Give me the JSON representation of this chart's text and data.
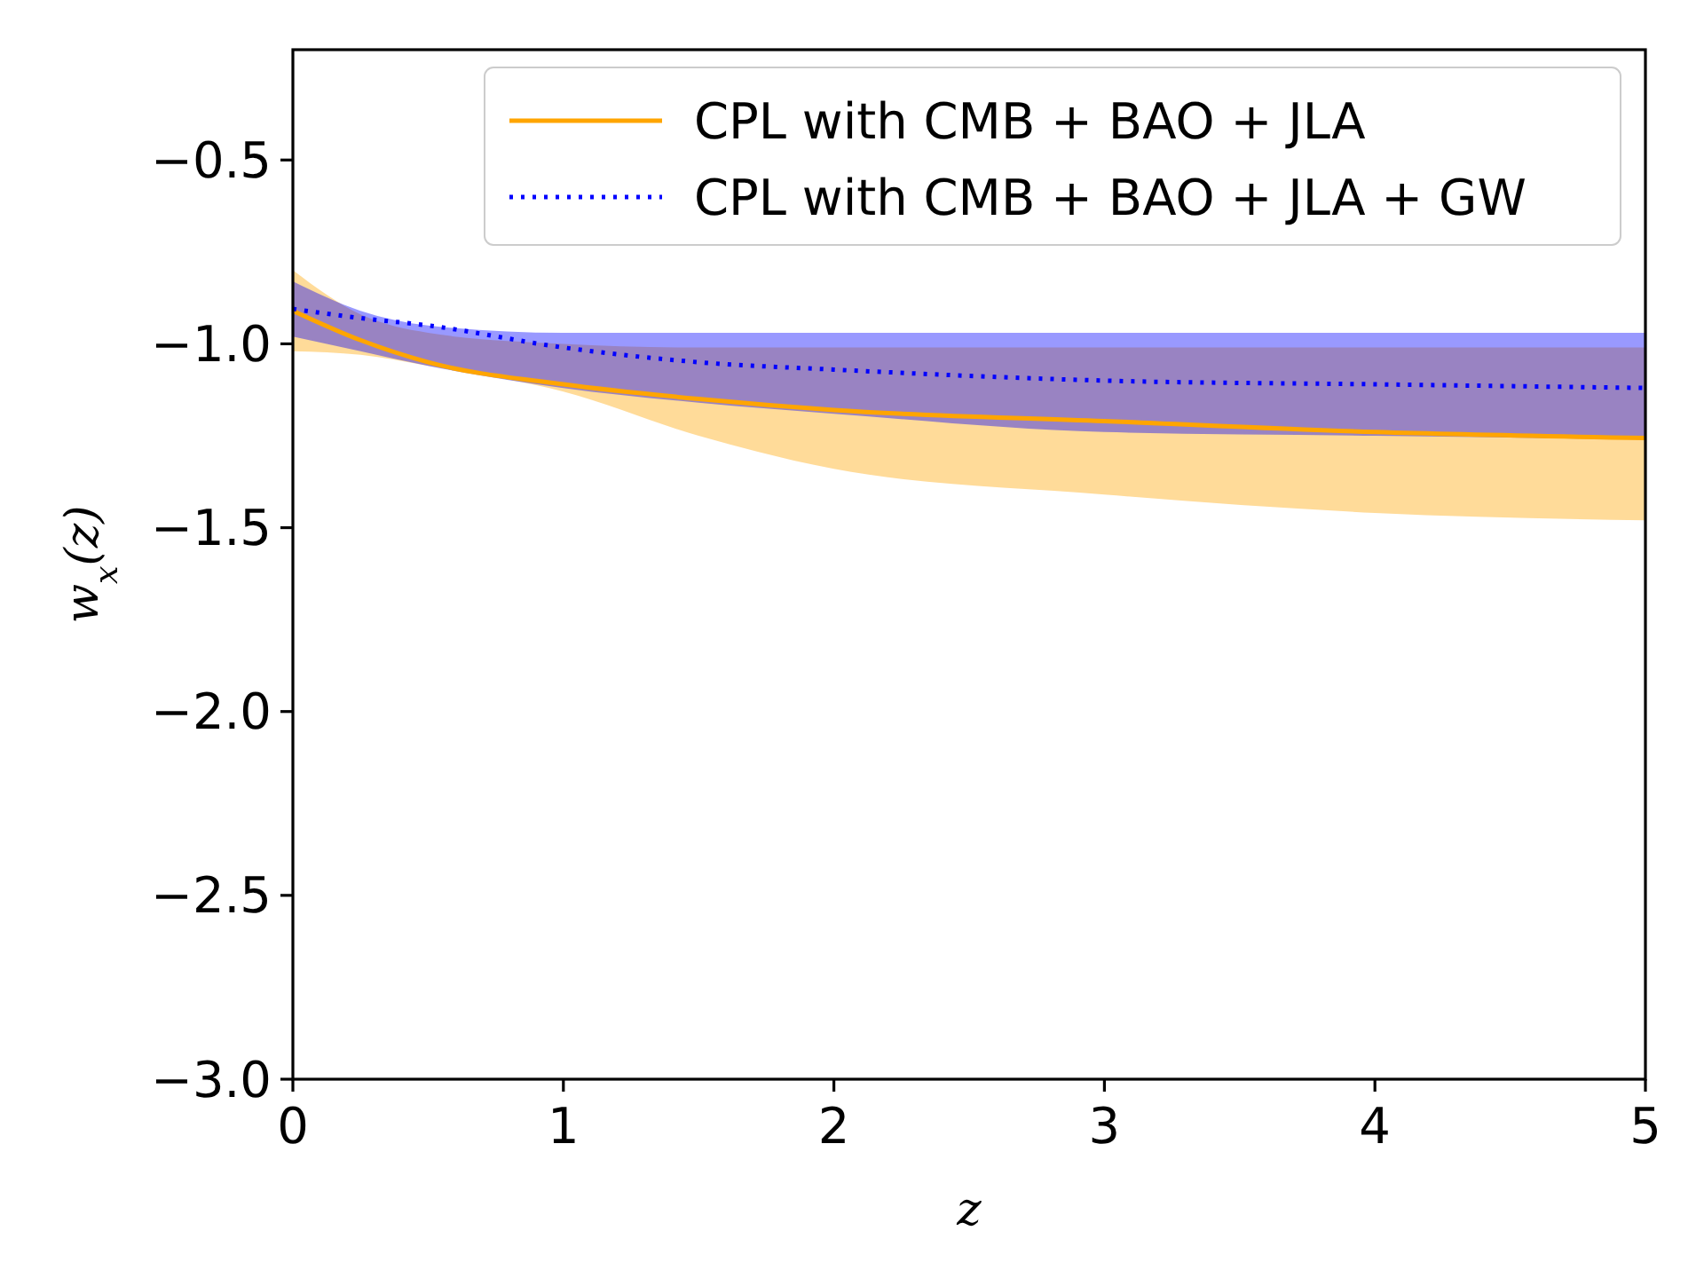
{
  "chart_data": {
    "type": "line",
    "xlabel": "z",
    "ylabel": "w$_{x}$(z)",
    "xlim": [
      0,
      5
    ],
    "ylim": [
      -3,
      -0.2
    ],
    "xticks": [
      0,
      1,
      2,
      3,
      4,
      5
    ],
    "yticks": [
      {
        "value": -3,
        "label": "−3.0"
      },
      {
        "value": -2.5,
        "label": "−2.5"
      },
      {
        "value": -2,
        "label": "−2.0"
      },
      {
        "value": -1.5,
        "label": "−1.5"
      },
      {
        "value": -1,
        "label": "−1.0"
      },
      {
        "value": -0.5,
        "label": "−0.5"
      }
    ],
    "legend": "top right",
    "grid": false,
    "x": [
      0,
      0.25,
      0.5,
      1,
      1.5,
      2,
      3,
      4,
      5
    ],
    "series": [
      {
        "name": "CPL with CMB + BAO + JLA",
        "color": "#ffa500",
        "line_style": "solid",
        "values": [
          -0.91,
          -0.99,
          -1.05,
          -1.11,
          -1.15,
          -1.18,
          -1.21,
          -1.24,
          -1.256
        ],
        "lower": [
          -1.02,
          -1.03,
          -1.06,
          -1.13,
          -1.25,
          -1.34,
          -1.41,
          -1.46,
          -1.48
        ],
        "upper": [
          -0.8,
          -0.92,
          -0.97,
          -1.0,
          -1.01,
          -1.01,
          -1.01,
          -1.01,
          -1.01
        ]
      },
      {
        "name": "CPL with CMB + BAO + JLA + GW",
        "color": "#0000ff",
        "line_style": "dotted",
        "values": [
          -0.905,
          -0.93,
          -0.95,
          -1.01,
          -1.05,
          -1.07,
          -1.1,
          -1.11,
          -1.12
        ],
        "lower": [
          -0.98,
          -1.02,
          -1.06,
          -1.12,
          -1.16,
          -1.19,
          -1.24,
          -1.25,
          -1.26
        ],
        "upper": [
          -0.83,
          -0.91,
          -0.95,
          -0.97,
          -0.97,
          -0.97,
          -0.97,
          -0.97,
          -0.97
        ]
      }
    ]
  }
}
